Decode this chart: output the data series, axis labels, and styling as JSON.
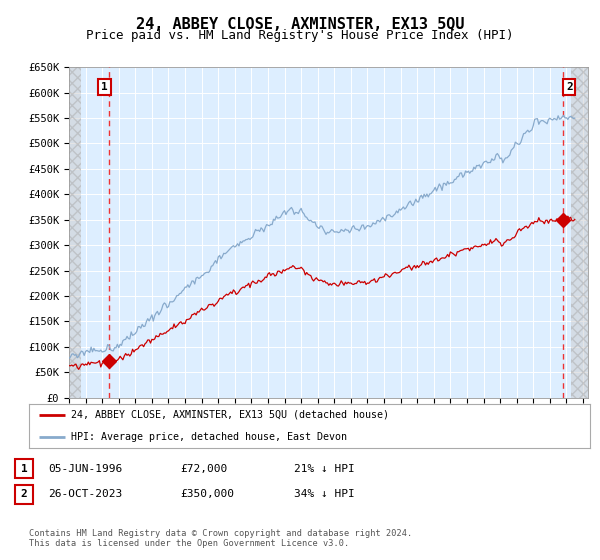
{
  "title": "24, ABBEY CLOSE, AXMINSTER, EX13 5QU",
  "subtitle": "Price paid vs. HM Land Registry's House Price Index (HPI)",
  "title_fontsize": 11,
  "subtitle_fontsize": 9,
  "ylim": [
    0,
    650000
  ],
  "yticks": [
    0,
    50000,
    100000,
    150000,
    200000,
    250000,
    300000,
    350000,
    400000,
    450000,
    500000,
    550000,
    600000,
    650000
  ],
  "ytick_labels": [
    "£0",
    "£50K",
    "£100K",
    "£150K",
    "£200K",
    "£250K",
    "£300K",
    "£350K",
    "£400K",
    "£450K",
    "£500K",
    "£550K",
    "£600K",
    "£650K"
  ],
  "xlim_start": 1994.0,
  "xlim_end": 2025.3,
  "background_color": "#ffffff",
  "plot_bg_color": "#ddeeff",
  "grid_color": "#ffffff",
  "sale1_date": 1996.43,
  "sale1_price": 72000,
  "sale2_date": 2023.82,
  "sale2_price": 350000,
  "red_line_color": "#cc0000",
  "blue_line_color": "#88aacc",
  "dashed_line_color": "#ee3333",
  "legend_label_red": "24, ABBEY CLOSE, AXMINSTER, EX13 5QU (detached house)",
  "legend_label_blue": "HPI: Average price, detached house, East Devon",
  "footer_text": "Contains HM Land Registry data © Crown copyright and database right 2024.\nThis data is licensed under the Open Government Licence v3.0.",
  "table_row1": [
    "1",
    "05-JUN-1996",
    "£72,000",
    "21% ↓ HPI"
  ],
  "table_row2": [
    "2",
    "26-OCT-2023",
    "£350,000",
    "34% ↓ HPI"
  ]
}
